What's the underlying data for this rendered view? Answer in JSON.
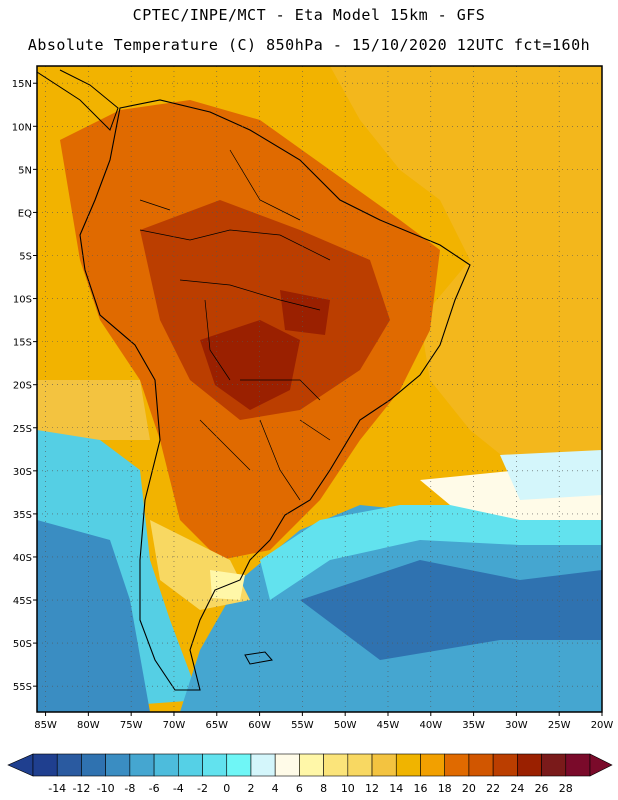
{
  "header": {
    "line1": "CPTEC/INPE/MCT -   Eta Model 15km - GFS",
    "line2": "Absolute Temperature (C) 850hPa - 15/10/2020 12UTC fct=160h"
  },
  "map": {
    "lat_labels": [
      "15N",
      "10N",
      "5N",
      "EQ",
      "5S",
      "10S",
      "15S",
      "20S",
      "25S",
      "30S",
      "35S",
      "40S",
      "45S",
      "50S",
      "55S"
    ],
    "lat_values": [
      15,
      10,
      5,
      0,
      -5,
      -10,
      -15,
      -20,
      -25,
      -30,
      -35,
      -40,
      -45,
      -50,
      -55
    ],
    "lon_labels": [
      "85W",
      "80W",
      "75W",
      "70W",
      "65W",
      "60W",
      "55W",
      "50W",
      "45W",
      "40W",
      "35W",
      "30W",
      "25W",
      "20W"
    ],
    "lon_values": [
      -85,
      -80,
      -75,
      -70,
      -65,
      -60,
      -55,
      -50,
      -45,
      -40,
      -35,
      -30,
      -25,
      -20
    ],
    "lat_range": [
      -58,
      17
    ],
    "lon_range": [
      -86,
      -20
    ]
  },
  "colorbar": {
    "labels": [
      "-14",
      "-12",
      "-10",
      "-8",
      "-6",
      "-4",
      "-2",
      "0",
      "2",
      "4",
      "6",
      "8",
      "10",
      "12",
      "14",
      "16",
      "18",
      "20",
      "22",
      "24",
      "26",
      "28"
    ],
    "colors": [
      "#1f3f8f",
      "#2a5aa0",
      "#2f72b0",
      "#3a8dc2",
      "#45a6d0",
      "#4dbcdc",
      "#55d0e6",
      "#62e2ee",
      "#6ff6f6",
      "#d4f6fb",
      "#fffbe8",
      "#fff7a8",
      "#fbe47a",
      "#f8d862",
      "#f3c340",
      "#f0b400",
      "#f2a000",
      "#e06a00",
      "#d15600",
      "#bb3e00",
      "#9a2000",
      "#7a1a1a",
      "#7a0a2a"
    ]
  }
}
